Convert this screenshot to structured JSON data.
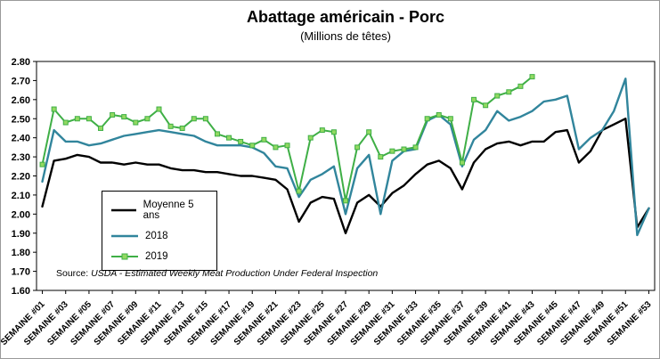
{
  "chart": {
    "title": "Abattage américain - Porc",
    "subtitle": "(Millions de têtes)",
    "source_prefix": "Source: ",
    "source_text": "USDA - Estimated Weekly Meat Production Under Federal Inspection"
  },
  "chart_data": {
    "type": "line",
    "title": "Abattage américain - Porc",
    "subtitle": "(Millions de têtes)",
    "xlabel": "",
    "ylabel": "",
    "ylim": [
      1.6,
      2.8
    ],
    "y_tick_step": 0.1,
    "grid": false,
    "legend_position": "inside-left",
    "x_tick_labels": [
      "SEMAINE #01",
      "SEMAINE #03",
      "SEMAINE #05",
      "SEMAINE #07",
      "SEMAINE #09",
      "SEMAINE #11",
      "SEMAINE #13",
      "SEMAINE #15",
      "SEMAINE #17",
      "SEMAINE #19",
      "SEMAINE #21",
      "SEMAINE #23",
      "SEMAINE #25",
      "SEMAINE #27",
      "SEMAINE #29",
      "SEMAINE #31",
      "SEMAINE #33",
      "SEMAINE #35",
      "SEMAINE #37",
      "SEMAINE #39",
      "SEMAINE #41",
      "SEMAINE #43",
      "SEMAINE #45",
      "SEMAINE #47",
      "SEMAINE #49",
      "SEMAINE #51",
      "SEMAINE #53"
    ],
    "x_weeks": 53,
    "series": [
      {
        "name": "Moyenne 5 ans",
        "color": "#000000",
        "marker": "none",
        "values": [
          2.04,
          2.28,
          2.29,
          2.31,
          2.3,
          2.27,
          2.27,
          2.26,
          2.27,
          2.26,
          2.26,
          2.24,
          2.23,
          2.23,
          2.22,
          2.22,
          2.21,
          2.2,
          2.2,
          2.19,
          2.18,
          2.13,
          1.96,
          2.06,
          2.09,
          2.08,
          1.9,
          2.06,
          2.1,
          2.04,
          2.11,
          2.15,
          2.21,
          2.26,
          2.28,
          2.24,
          2.13,
          2.27,
          2.34,
          2.37,
          2.38,
          2.36,
          2.38,
          2.38,
          2.43,
          2.44,
          2.27,
          2.33,
          2.44,
          2.47,
          2.5,
          1.93,
          2.03
        ]
      },
      {
        "name": "2018",
        "color": "#31859C",
        "marker": "none",
        "values": [
          2.17,
          2.44,
          2.38,
          2.38,
          2.36,
          2.37,
          2.39,
          2.41,
          2.42,
          2.43,
          2.44,
          2.43,
          2.42,
          2.41,
          2.38,
          2.36,
          2.36,
          2.36,
          2.35,
          2.32,
          2.25,
          2.24,
          2.09,
          2.18,
          2.21,
          2.25,
          2.0,
          2.24,
          2.31,
          2.0,
          2.28,
          2.33,
          2.34,
          2.49,
          2.52,
          2.47,
          2.25,
          2.39,
          2.44,
          2.54,
          2.49,
          2.51,
          2.54,
          2.59,
          2.6,
          2.62,
          2.34,
          2.4,
          2.44,
          2.54,
          2.71,
          1.89,
          2.03
        ]
      },
      {
        "name": "2019",
        "color": "#3FAF46",
        "marker": "square",
        "marker_fill": "#92D962",
        "values": [
          2.26,
          2.55,
          2.48,
          2.5,
          2.5,
          2.45,
          2.52,
          2.51,
          2.48,
          2.5,
          2.55,
          2.46,
          2.45,
          2.5,
          2.5,
          2.42,
          2.4,
          2.38,
          2.36,
          2.39,
          2.35,
          2.36,
          2.12,
          2.4,
          2.44,
          2.43,
          2.07,
          2.35,
          2.43,
          2.3,
          2.33,
          2.34,
          2.35,
          2.5,
          2.52,
          2.5,
          2.27,
          2.6,
          2.57,
          2.62,
          2.64,
          2.67,
          2.72,
          null,
          null,
          null,
          null,
          null,
          null,
          null,
          null,
          null,
          null
        ]
      }
    ]
  }
}
